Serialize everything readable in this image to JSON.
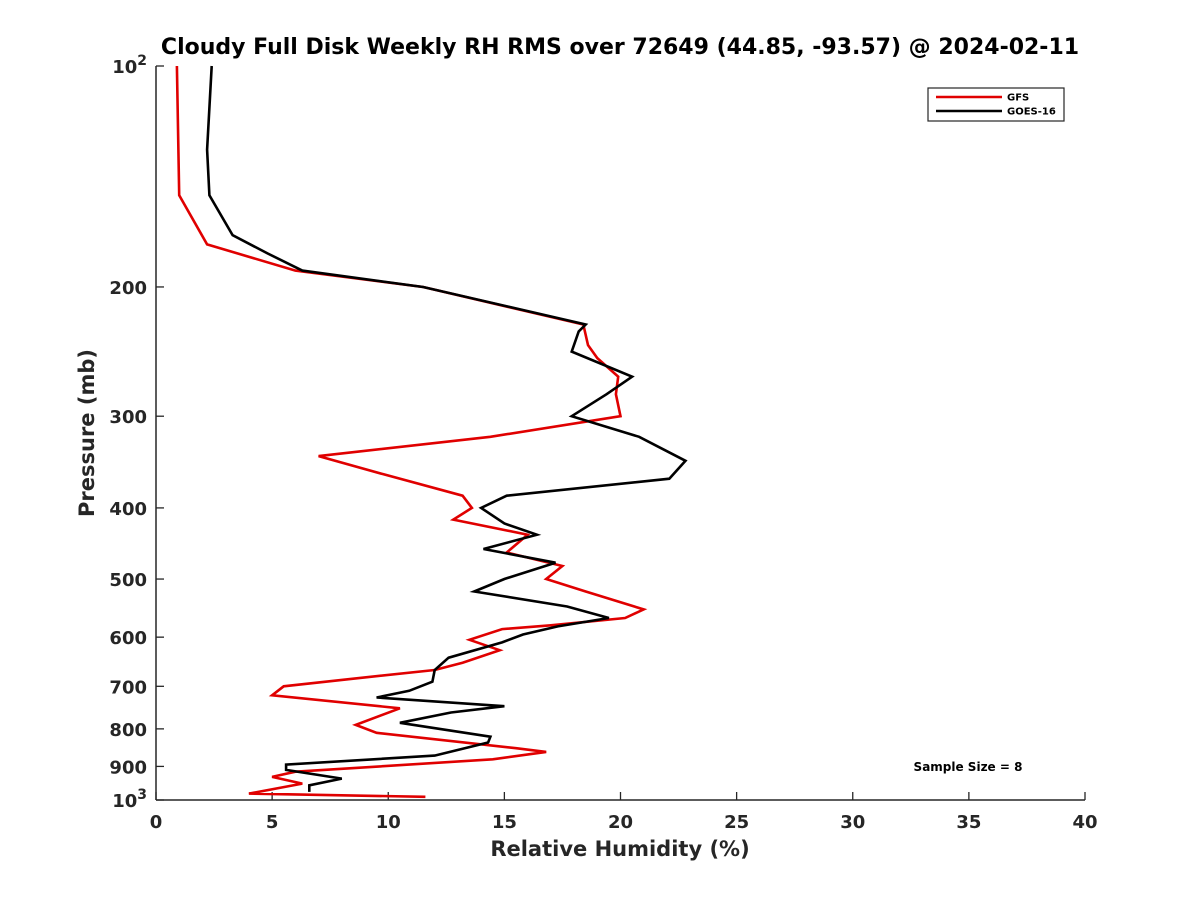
{
  "chart_data": {
    "type": "line",
    "title": "Cloudy Full Disk Weekly RH RMS over 72649 (44.85, -93.57) @ 2024-02-11",
    "xlabel": "Relative Humidity (%)",
    "ylabel": "Pressure (mb)",
    "xlim": [
      0,
      40
    ],
    "ylim": [
      100,
      1000
    ],
    "yscale": "log",
    "y_reversed": true,
    "x_ticks": [
      {
        "value": 0,
        "label": "0"
      },
      {
        "value": 5,
        "label": "5"
      },
      {
        "value": 10,
        "label": "10"
      },
      {
        "value": 15,
        "label": "15"
      },
      {
        "value": 20,
        "label": "20"
      },
      {
        "value": 25,
        "label": "25"
      },
      {
        "value": 30,
        "label": "30"
      },
      {
        "value": 35,
        "label": "35"
      },
      {
        "value": 40,
        "label": "40"
      }
    ],
    "y_ticks": [
      {
        "value": 100,
        "label": "10",
        "sup": "2"
      },
      {
        "value": 200,
        "label": "200"
      },
      {
        "value": 300,
        "label": "300"
      },
      {
        "value": 400,
        "label": "400"
      },
      {
        "value": 500,
        "label": "500"
      },
      {
        "value": 600,
        "label": "600"
      },
      {
        "value": 700,
        "label": "700"
      },
      {
        "value": 800,
        "label": "800"
      },
      {
        "value": 900,
        "label": "900"
      },
      {
        "value": 1000,
        "label": "10",
        "sup": "3"
      }
    ],
    "grid": false,
    "legend_position": "top-right",
    "annotation": "Sample Size = 8",
    "series": [
      {
        "name": "GFS",
        "color": "#e00000",
        "points": [
          [
            0.9,
            100
          ],
          [
            1.0,
            150
          ],
          [
            2.2,
            175
          ],
          [
            6.0,
            190
          ],
          [
            11.5,
            200
          ],
          [
            18.4,
            225
          ],
          [
            18.6,
            240
          ],
          [
            19.0,
            250
          ],
          [
            19.9,
            265
          ],
          [
            19.8,
            280
          ],
          [
            20.0,
            300
          ],
          [
            14.4,
            320
          ],
          [
            7.0,
            340
          ],
          [
            9.8,
            360
          ],
          [
            13.2,
            385
          ],
          [
            13.6,
            400
          ],
          [
            12.8,
            415
          ],
          [
            16.0,
            435
          ],
          [
            15.1,
            460
          ],
          [
            17.5,
            480
          ],
          [
            16.8,
            500
          ],
          [
            18.5,
            520
          ],
          [
            21.0,
            550
          ],
          [
            20.2,
            565
          ],
          [
            17.0,
            578
          ],
          [
            14.9,
            585
          ],
          [
            13.5,
            605
          ],
          [
            14.8,
            625
          ],
          [
            13.2,
            650
          ],
          [
            12.0,
            665
          ],
          [
            8.2,
            685
          ],
          [
            5.5,
            700
          ],
          [
            5.0,
            720
          ],
          [
            10.5,
            750
          ],
          [
            8.6,
            790
          ],
          [
            9.5,
            810
          ],
          [
            15.5,
            850
          ],
          [
            16.8,
            860
          ],
          [
            14.5,
            880
          ],
          [
            6.0,
            915
          ],
          [
            5.0,
            930
          ],
          [
            6.3,
            950
          ],
          [
            4.0,
            980
          ],
          [
            11.6,
            990
          ]
        ]
      },
      {
        "name": "GOES-16",
        "color": "#000000",
        "points": [
          [
            2.4,
            100
          ],
          [
            2.2,
            130
          ],
          [
            2.3,
            150
          ],
          [
            3.3,
            170
          ],
          [
            4.8,
            180
          ],
          [
            6.3,
            190
          ],
          [
            11.5,
            200
          ],
          [
            18.5,
            225
          ],
          [
            18.2,
            230
          ],
          [
            17.9,
            245
          ],
          [
            20.5,
            265
          ],
          [
            19.4,
            280
          ],
          [
            17.9,
            300
          ],
          [
            20.8,
            320
          ],
          [
            22.8,
            345
          ],
          [
            22.1,
            365
          ],
          [
            15.1,
            385
          ],
          [
            14.0,
            400
          ],
          [
            15.0,
            420
          ],
          [
            16.4,
            435
          ],
          [
            14.1,
            455
          ],
          [
            17.2,
            475
          ],
          [
            15.0,
            500
          ],
          [
            13.7,
            520
          ],
          [
            17.7,
            545
          ],
          [
            19.5,
            565
          ],
          [
            17.3,
            580
          ],
          [
            15.8,
            595
          ],
          [
            14.9,
            610
          ],
          [
            12.6,
            640
          ],
          [
            12.0,
            665
          ],
          [
            11.9,
            690
          ],
          [
            10.9,
            710
          ],
          [
            9.5,
            725
          ],
          [
            15.0,
            745
          ],
          [
            12.7,
            760
          ],
          [
            10.5,
            785
          ],
          [
            14.4,
            820
          ],
          [
            14.3,
            835
          ],
          [
            12.0,
            870
          ],
          [
            5.6,
            895
          ],
          [
            5.6,
            910
          ],
          [
            8.0,
            935
          ],
          [
            6.6,
            955
          ],
          [
            6.6,
            975
          ]
        ]
      }
    ]
  }
}
